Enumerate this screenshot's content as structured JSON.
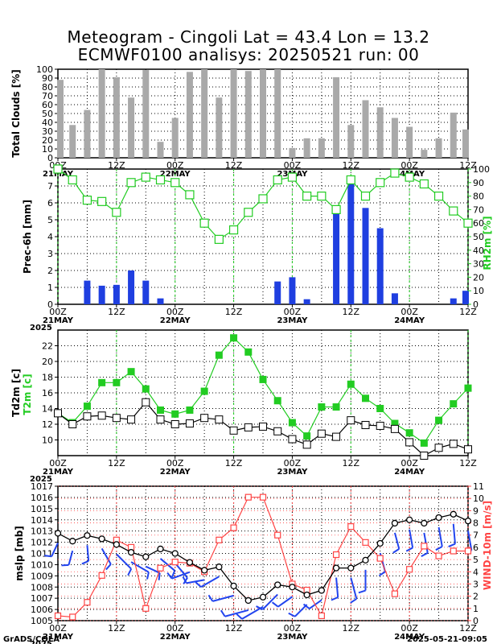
{
  "title": {
    "line1": "Meteogram - Cingoli Lat = 43.4 Lon = 13.2",
    "line2": "ECMWF0100 analisys: 20250521 run: 00"
  },
  "footer": {
    "left": "GrADS/COLA",
    "right": "2025-05-21-09:05"
  },
  "time_axis": {
    "tick_labels": [
      "00Z",
      "12Z",
      "00Z",
      "12Z",
      "00Z",
      "12Z",
      "00Z",
      "12Z"
    ],
    "date_labels": [
      "21MAY",
      "22MAY",
      "23MAY",
      "24MAY"
    ],
    "year_label": "2025"
  },
  "colors": {
    "clouds": "#a9a9a9",
    "precip": "#1f3fe0",
    "rh": "#22cc22",
    "t2m": "#22cc22",
    "td2m": "#000000",
    "mslp": "#000000",
    "wind": "#ff4444",
    "barbs": "#2244ee"
  },
  "chart_data": [
    {
      "type": "bar",
      "ylabel": "Total Clouds [%]",
      "ylim": [
        0,
        100
      ],
      "yticks": [
        0,
        10,
        20,
        30,
        40,
        50,
        60,
        70,
        80,
        90,
        100
      ],
      "grid": true,
      "x_hours": [
        0,
        3,
        6,
        9,
        12,
        15,
        18,
        21,
        24,
        27,
        30,
        33,
        36,
        39,
        42,
        45,
        48,
        51,
        54,
        57,
        60,
        63,
        66,
        69,
        72,
        75,
        78,
        81,
        84
      ],
      "values": [
        88,
        37,
        54,
        100,
        91,
        68,
        99,
        18,
        45,
        97,
        100,
        68,
        100,
        98,
        100,
        100,
        11,
        22,
        22,
        91,
        37,
        65,
        57,
        45,
        35,
        9,
        22,
        51,
        32
      ]
    },
    {
      "type": "bar",
      "ylabel": "Prec-6h [mm]",
      "ylim": [
        0,
        8
      ],
      "yticks": [
        0,
        1,
        2,
        3,
        4,
        5,
        6,
        7
      ],
      "grid": true,
      "x_hours": [
        0,
        3,
        6,
        9,
        12,
        15,
        18,
        21,
        24,
        27,
        30,
        33,
        36,
        39,
        42,
        45,
        48,
        51,
        54,
        57,
        60,
        63,
        66,
        69,
        72,
        75,
        78,
        81,
        84
      ],
      "values": [
        0,
        0,
        1.4,
        1.1,
        1.15,
        2.0,
        1.4,
        0.35,
        0,
        0,
        0,
        0,
        0,
        0,
        0,
        1.35,
        1.6,
        0.3,
        0,
        5.7,
        7.4,
        5.7,
        4.5,
        0.65,
        0,
        0,
        0,
        0.35,
        0.8
      ],
      "right_axis": {
        "label": "RH2m [%]",
        "ylim": [
          0,
          100
        ],
        "yticks": [
          0,
          10,
          20,
          30,
          40,
          50,
          60,
          70,
          80,
          90,
          100
        ],
        "series": {
          "name": "RH2m",
          "x_hours": [
            0,
            3,
            6,
            9,
            12,
            15,
            18,
            21,
            24,
            27,
            30,
            33,
            36,
            39,
            42,
            45,
            48,
            51,
            54,
            57,
            60,
            63,
            66,
            69,
            72,
            75,
            78,
            81,
            84
          ],
          "values": [
            100,
            92,
            77,
            76,
            68,
            90,
            94,
            92,
            90,
            81,
            60,
            48,
            55,
            68,
            78,
            92,
            94,
            80,
            80,
            70,
            92,
            80,
            90,
            97,
            94,
            89,
            80,
            69,
            60
          ]
        }
      }
    },
    {
      "type": "line",
      "ylabel_t2m": "T2m [c]",
      "ylabel_td2m": "Td2m [c]",
      "ylim": [
        8,
        24
      ],
      "yticks": [
        10,
        12,
        14,
        16,
        18,
        20,
        22
      ],
      "grid": true,
      "series": [
        {
          "name": "T2m",
          "x_hours": [
            0,
            3,
            6,
            9,
            12,
            15,
            18,
            21,
            24,
            27,
            30,
            33,
            36,
            39,
            42,
            45,
            48,
            51,
            54,
            57,
            60,
            63,
            66,
            69,
            72,
            75,
            78,
            81,
            84
          ],
          "values": [
            13.4,
            12.2,
            14.3,
            17.3,
            17.3,
            18.7,
            16.5,
            13.8,
            13.3,
            13.8,
            16.2,
            20.8,
            23.0,
            21.2,
            17.7,
            15.0,
            12.2,
            10.5,
            14.2,
            14.2,
            17.1,
            15.3,
            14.0,
            12.1,
            10.9,
            9.6,
            12.5,
            14.6,
            16.6
          ]
        },
        {
          "name": "Td2m",
          "x_hours": [
            0,
            3,
            6,
            9,
            12,
            15,
            18,
            21,
            24,
            27,
            30,
            33,
            36,
            39,
            42,
            45,
            48,
            51,
            54,
            57,
            60,
            63,
            66,
            69,
            72,
            75,
            78,
            81,
            84
          ],
          "values": [
            13.4,
            12.0,
            13.0,
            13.1,
            12.8,
            12.6,
            14.8,
            12.6,
            12.0,
            12.1,
            12.8,
            12.6,
            11.2,
            11.6,
            11.7,
            11.1,
            10.1,
            9.4,
            10.8,
            10.4,
            12.5,
            11.9,
            11.8,
            11.4,
            9.7,
            8.0,
            9.0,
            9.5,
            8.8
          ]
        }
      ]
    },
    {
      "type": "line",
      "ylabel": "mslp [mb]",
      "ylim": [
        1005,
        1017
      ],
      "yticks": [
        1005,
        1006,
        1007,
        1008,
        1009,
        1010,
        1011,
        1012,
        1013,
        1014,
        1015,
        1016,
        1017
      ],
      "grid": true,
      "series": [
        {
          "name": "mslp",
          "x_hours": [
            0,
            3,
            6,
            9,
            12,
            15,
            18,
            21,
            24,
            27,
            30,
            33,
            36,
            39,
            42,
            45,
            48,
            51,
            54,
            57,
            60,
            63,
            66,
            69,
            72,
            75,
            78,
            81,
            84
          ],
          "values": [
            1012.8,
            1012.1,
            1012.6,
            1012.3,
            1011.8,
            1011.1,
            1010.7,
            1011.4,
            1011.0,
            1010.2,
            1009.5,
            1009.8,
            1008.1,
            1006.8,
            1007.1,
            1008.2,
            1008.0,
            1007.3,
            1007.7,
            1009.7,
            1009.7,
            1010.4,
            1011.9,
            1013.7,
            1014.0,
            1013.7,
            1014.2,
            1014.5,
            1013.9
          ]
        }
      ],
      "right_axis": {
        "label": "WIND-10m [m/s]",
        "ylim": [
          0,
          11
        ],
        "yticks": [
          0,
          1,
          2,
          3,
          4,
          5,
          6,
          7,
          8,
          9,
          10,
          11
        ],
        "series": {
          "name": "WIND-10m",
          "x_hours": [
            0,
            3,
            6,
            9,
            12,
            15,
            18,
            21,
            24,
            27,
            30,
            33,
            36,
            39,
            42,
            45,
            48,
            51,
            54,
            57,
            60,
            63,
            66,
            69,
            72,
            75,
            78,
            81,
            84
          ],
          "values": [
            0.4,
            0.3,
            1.5,
            3.7,
            6.6,
            6.0,
            1.0,
            4.3,
            4.8,
            4.7,
            4.0,
            6.6,
            7.6,
            10.1,
            10.1,
            7.0,
            3.0,
            2.5,
            0.4,
            5.4,
            7.7,
            6.4,
            5.1,
            2.2,
            4.2,
            6.1,
            5.3,
            5.7,
            5.7
          ]
        },
        "barb_dir_deg": [
          205,
          195,
          175,
          150,
          135,
          120,
          115,
          130,
          140,
          250,
          260,
          240,
          255,
          255,
          240,
          225,
          235,
          225,
          235,
          175,
          165,
          180,
          165,
          165,
          170,
          170,
          170,
          175,
          170
        ]
      }
    }
  ]
}
